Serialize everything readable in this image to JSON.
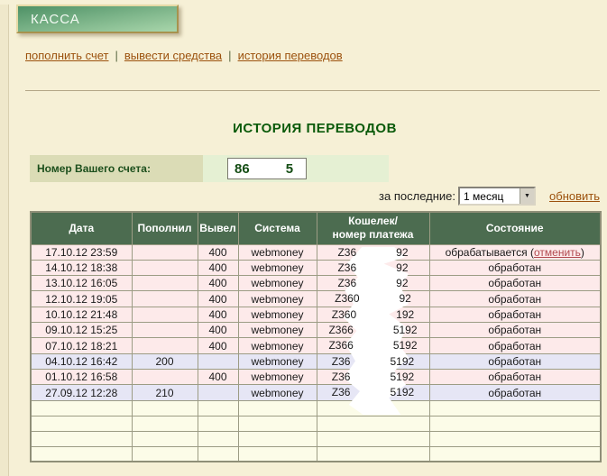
{
  "banner": {
    "title": "КАССА"
  },
  "nav": {
    "separator": "|",
    "items": [
      {
        "id": "topup",
        "label": "пополнить счет"
      },
      {
        "id": "withdraw",
        "label": "вывести средства"
      },
      {
        "id": "history",
        "label": "история переводов"
      }
    ]
  },
  "main": {
    "title": "ИСТОРИЯ ПЕРЕВОДОВ",
    "account": {
      "label": "Номер Вашего счета:",
      "value_prefix": "86",
      "value_suffix": "5"
    },
    "filter": {
      "label": "за последние:",
      "selected": "1 месяц",
      "refresh_label": "обновить"
    }
  },
  "table": {
    "headers": [
      {
        "label": "Дата"
      },
      {
        "label": "Пополнил"
      },
      {
        "label": "Вывел"
      },
      {
        "label": "Система"
      },
      {
        "label": "Кошелек/\nномер платежа"
      },
      {
        "label": "Состояние"
      }
    ],
    "rows": [
      {
        "date": "17.10.12 23:59",
        "deposit": "",
        "withdraw": "400",
        "system": "webmoney",
        "wallet_prefix": "Z36",
        "wallet_suffix": "92",
        "status": "обрабатывается",
        "status_link": "отменить",
        "row_type": "withdraw"
      },
      {
        "date": "14.10.12 18:38",
        "deposit": "",
        "withdraw": "400",
        "system": "webmoney",
        "wallet_prefix": "Z36",
        "wallet_suffix": "92",
        "status": "обработан",
        "row_type": "withdraw"
      },
      {
        "date": "13.10.12 16:05",
        "deposit": "",
        "withdraw": "400",
        "system": "webmoney",
        "wallet_prefix": "Z36",
        "wallet_suffix": "92",
        "status": "обработан",
        "row_type": "withdraw"
      },
      {
        "date": "12.10.12 19:05",
        "deposit": "",
        "withdraw": "400",
        "system": "webmoney",
        "wallet_prefix": "Z360",
        "wallet_suffix": "92",
        "status": "обработан",
        "row_type": "withdraw"
      },
      {
        "date": "10.10.12 21:48",
        "deposit": "",
        "withdraw": "400",
        "system": "webmoney",
        "wallet_prefix": "Z360",
        "wallet_suffix": "192",
        "status": "обработан",
        "row_type": "withdraw"
      },
      {
        "date": "09.10.12 15:25",
        "deposit": "",
        "withdraw": "400",
        "system": "webmoney",
        "wallet_prefix": "Z366",
        "wallet_suffix": "5192",
        "status": "обработан",
        "row_type": "withdraw"
      },
      {
        "date": "07.10.12 18:21",
        "deposit": "",
        "withdraw": "400",
        "system": "webmoney",
        "wallet_prefix": "Z366",
        "wallet_suffix": "5192",
        "status": "обработан",
        "row_type": "withdraw"
      },
      {
        "date": "04.10.12 16:42",
        "deposit": "200",
        "withdraw": "",
        "system": "webmoney",
        "wallet_prefix": "Z36",
        "wallet_suffix": "5192",
        "status": "обработан",
        "row_type": "deposit"
      },
      {
        "date": "01.10.12 16:58",
        "deposit": "",
        "withdraw": "400",
        "system": "webmoney",
        "wallet_prefix": "Z36",
        "wallet_suffix": "5192",
        "status": "обработан",
        "row_type": "withdraw"
      },
      {
        "date": "27.09.12 12:28",
        "deposit": "210",
        "withdraw": "",
        "system": "webmoney",
        "wallet_prefix": "Z36",
        "wallet_suffix": "5192",
        "status": "обработан",
        "row_type": "deposit"
      }
    ],
    "empty_row_count": 4
  },
  "colors": {
    "page_bg": "#f6f0d6",
    "banner_green_dark": "#4e9166",
    "banner_green_light": "#a9d6ab",
    "title_green": "#0a5a0a",
    "link_brown": "#9c520e",
    "cancel_red": "#b24a50",
    "header_green": "#4c6c50",
    "row_pink": "#fdeaea",
    "row_lavender": "#e6e6f5",
    "row_empty": "#fcfce8",
    "label_olive": "#dbdcb6",
    "value_green_bg": "#e5f0d3",
    "border_olive": "#9c9c84"
  }
}
